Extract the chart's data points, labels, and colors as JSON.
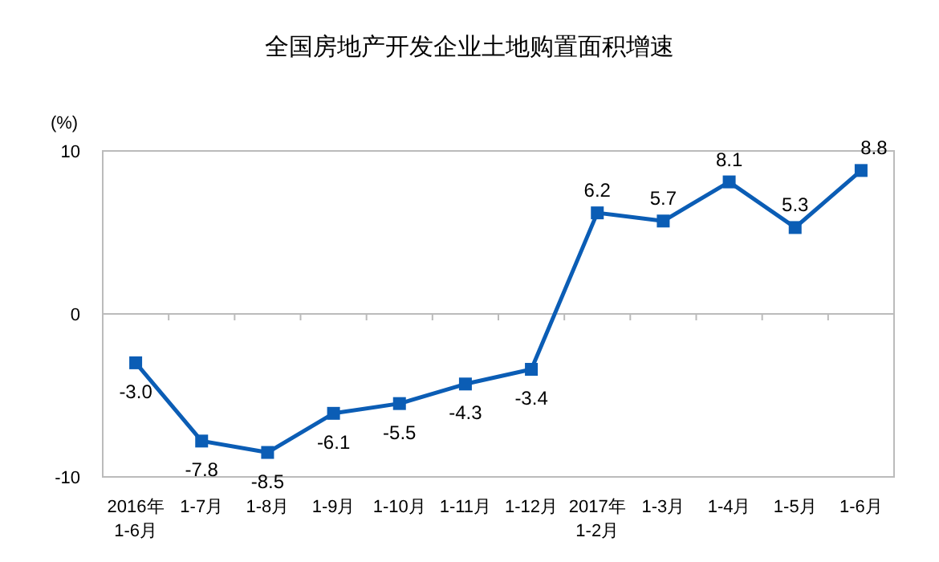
{
  "chart_data": {
    "type": "line",
    "title": "全国房地产开发企业土地购置面积增速",
    "ylabel": "(%)",
    "categories": [
      "2016年\n1-6月",
      "1-7月",
      "1-8月",
      "1-9月",
      "1-10月",
      "1-11月",
      "1-12月",
      "2017年\n1-2月",
      "1-3月",
      "1-4月",
      "1-5月",
      "1-6月"
    ],
    "series": [
      {
        "color": "#0b5db5",
        "values": [
          -3.0,
          -7.8,
          -8.5,
          -6.1,
          -5.5,
          -4.3,
          -3.4,
          6.2,
          5.7,
          8.1,
          5.3,
          8.8
        ]
      }
    ],
    "value_labels": [
      "-3.0",
      "-7.8",
      "-8.5",
      "-6.1",
      "-5.5",
      "-4.3",
      "-3.4",
      "6.2",
      "5.7",
      "8.1",
      "5.3",
      "8.8"
    ],
    "ylim": [
      -10,
      10
    ],
    "yticks": [
      -10,
      0,
      10
    ],
    "marker": "square",
    "line_style": "solid",
    "grid": "y"
  }
}
